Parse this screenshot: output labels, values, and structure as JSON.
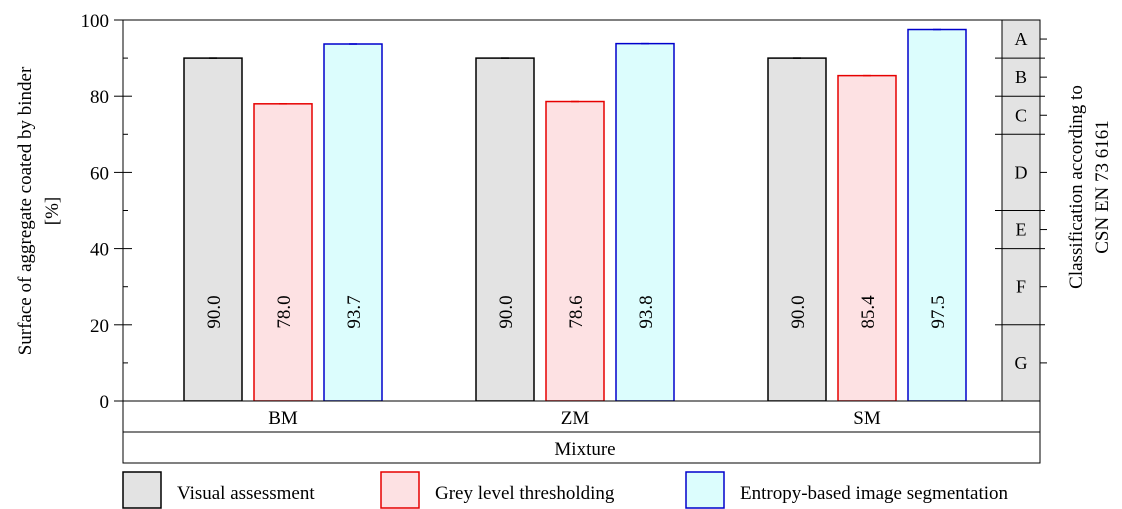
{
  "chart_data": {
    "type": "bar",
    "categories": [
      "BM",
      "ZM",
      "SM"
    ],
    "series": [
      {
        "name": "Visual assessment",
        "values": [
          90.0,
          90.0,
          90.0
        ],
        "labels": [
          "90.0",
          "90.0",
          "90.0"
        ],
        "fill": "#e3e3e3",
        "stroke": "#000000"
      },
      {
        "name": "Grey level thresholding",
        "values": [
          78.0,
          78.6,
          85.4
        ],
        "labels": [
          "78.0",
          "78.6",
          "85.4"
        ],
        "fill": "#fde1e3",
        "stroke": "#e60000"
      },
      {
        "name": "Entropy-based image segmentation",
        "values": [
          93.7,
          93.8,
          97.5
        ],
        "labels": [
          "93.7",
          "93.8",
          "97.5"
        ],
        "fill": "#dcfdfd",
        "stroke": "#0000cc"
      }
    ],
    "xlabel": "Mixture",
    "ylabel_line1": "Surface of aggregate coated by binder",
    "ylabel_line2": "[%]",
    "ylim": [
      0,
      100
    ],
    "yticks": [
      0,
      20,
      40,
      60,
      80,
      100
    ],
    "ytick_labels": [
      "0",
      "20",
      "40",
      "60",
      "80",
      "100"
    ],
    "classification": {
      "title_line1": "Classification according to",
      "title_line2": "CSN EN 73 6161",
      "classes": [
        {
          "label": "A",
          "from": 90,
          "to": 100
        },
        {
          "label": "B",
          "from": 80,
          "to": 90
        },
        {
          "label": "C",
          "from": 70,
          "to": 80
        },
        {
          "label": "D",
          "from": 50,
          "to": 70
        },
        {
          "label": "E",
          "from": 40,
          "to": 50
        },
        {
          "label": "F",
          "from": 20,
          "to": 40
        },
        {
          "label": "G",
          "from": 0,
          "to": 20
        }
      ],
      "fill": "#e3e3e3"
    },
    "legend_position": "bottom",
    "grid": false
  }
}
